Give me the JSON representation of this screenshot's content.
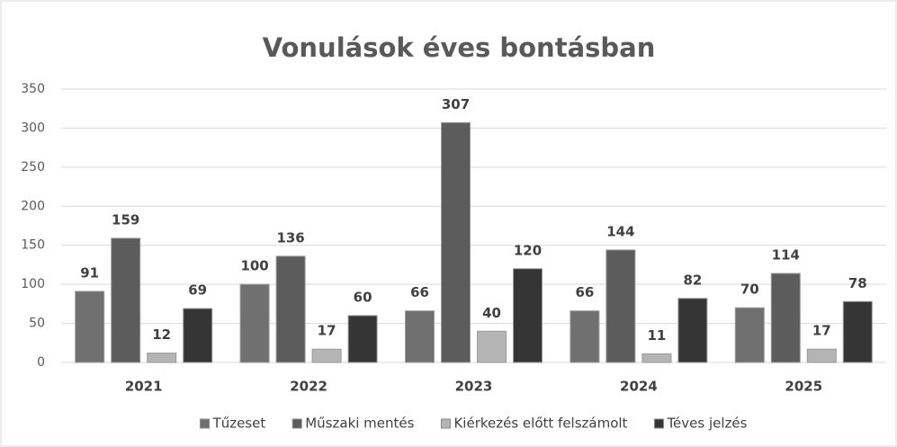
{
  "chart_data": {
    "type": "bar",
    "title": "Vonulások éves bontásban",
    "categories": [
      "2021",
      "2022",
      "2023",
      "2024",
      "2025"
    ],
    "series": [
      {
        "name": "Tűzeset",
        "color": "#707070",
        "values": [
          91,
          100,
          66,
          66,
          70
        ]
      },
      {
        "name": "Műszaki mentés",
        "color": "#5c5c5c",
        "values": [
          159,
          136,
          307,
          144,
          114
        ]
      },
      {
        "name": "Kiérkezés előtt felszámolt",
        "color": "#b4b4b4",
        "values": [
          12,
          17,
          40,
          11,
          17
        ]
      },
      {
        "name": "Téves jelzés",
        "color": "#353535",
        "values": [
          69,
          60,
          120,
          82,
          78
        ]
      }
    ],
    "ylim": [
      0,
      350
    ],
    "yticks": [
      0,
      50,
      100,
      150,
      200,
      250,
      300,
      350
    ],
    "grid": true,
    "legend": "bottom"
  }
}
